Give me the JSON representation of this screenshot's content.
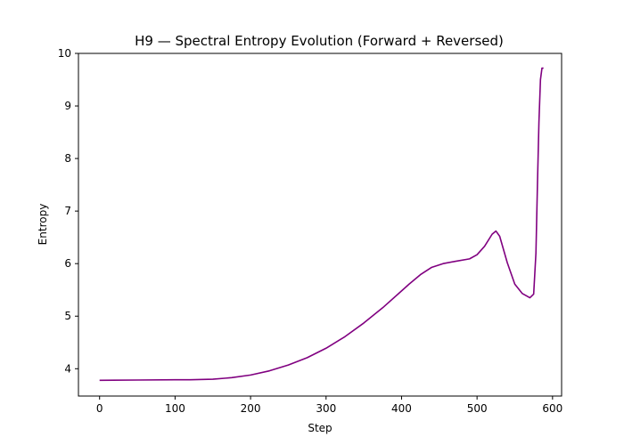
{
  "chart_data": {
    "type": "line",
    "title": "H9 — Spectral Entropy Evolution (Forward + Reversed)",
    "xlabel": "Step",
    "ylabel": "Entropy",
    "xlim": [
      -28,
      612
    ],
    "ylim": [
      3.48,
      10.0
    ],
    "xticks": [
      0,
      100,
      200,
      300,
      400,
      500,
      600
    ],
    "yticks": [
      4,
      5,
      6,
      7,
      8,
      9,
      10
    ],
    "grid": false,
    "legend": "none",
    "series": [
      {
        "color": "#800080",
        "x": [
          0,
          50,
          100,
          120,
          150,
          175,
          200,
          225,
          250,
          275,
          300,
          325,
          350,
          375,
          400,
          410,
          425,
          440,
          455,
          470,
          490,
          500,
          510,
          520,
          525,
          530,
          540,
          550,
          560,
          570,
          575,
          578,
          580,
          582,
          584,
          586,
          588
        ],
        "y": [
          3.78,
          3.785,
          3.79,
          3.79,
          3.8,
          3.83,
          3.88,
          3.96,
          4.07,
          4.21,
          4.39,
          4.61,
          4.87,
          5.16,
          5.48,
          5.61,
          5.79,
          5.93,
          6.0,
          6.04,
          6.09,
          6.17,
          6.33,
          6.56,
          6.62,
          6.52,
          6.02,
          5.61,
          5.43,
          5.35,
          5.42,
          6.2,
          7.5,
          8.7,
          9.5,
          9.72,
          9.72
        ]
      }
    ]
  }
}
